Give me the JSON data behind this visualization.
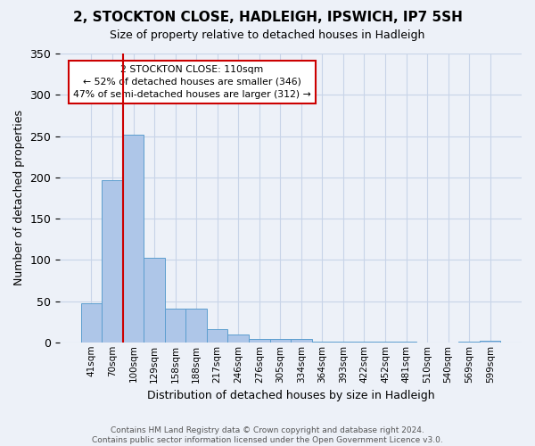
{
  "title": "2, STOCKTON CLOSE, HADLEIGH, IPSWICH, IP7 5SH",
  "subtitle": "Size of property relative to detached houses in Hadleigh",
  "xlabel": "Distribution of detached houses by size in Hadleigh",
  "ylabel": "Number of detached properties",
  "bar_values": [
    47,
    196,
    252,
    102,
    41,
    41,
    16,
    9,
    4,
    4,
    4,
    1,
    1,
    1,
    1,
    1,
    0,
    0,
    1,
    2
  ],
  "bar_labels": [
    "41sqm",
    "70sqm",
    "100sqm",
    "129sqm",
    "158sqm",
    "188sqm",
    "217sqm",
    "246sqm",
    "276sqm",
    "305sqm",
    "334sqm",
    "364sqm",
    "393sqm",
    "422sqm",
    "452sqm",
    "481sqm",
    "510sqm",
    "540sqm",
    "569sqm",
    "599sqm"
  ],
  "bar_color": "#aec6e8",
  "bar_edge_color": "#5c9ecf",
  "grid_color": "#c8d4e8",
  "bg_color": "#edf1f8",
  "vline_color": "#cc0000",
  "vline_pos": 1.5,
  "annotation_text": "2 STOCKTON CLOSE: 110sqm\n← 52% of detached houses are smaller (346)\n47% of semi-detached houses are larger (312) →",
  "annotation_box_facecolor": "#ffffff",
  "annotation_box_edgecolor": "#cc0000",
  "footnote": "Contains HM Land Registry data © Crown copyright and database right 2024.\nContains public sector information licensed under the Open Government Licence v3.0.",
  "ylim": [
    0,
    350
  ],
  "yticks": [
    0,
    50,
    100,
    150,
    200,
    250,
    300,
    350
  ]
}
